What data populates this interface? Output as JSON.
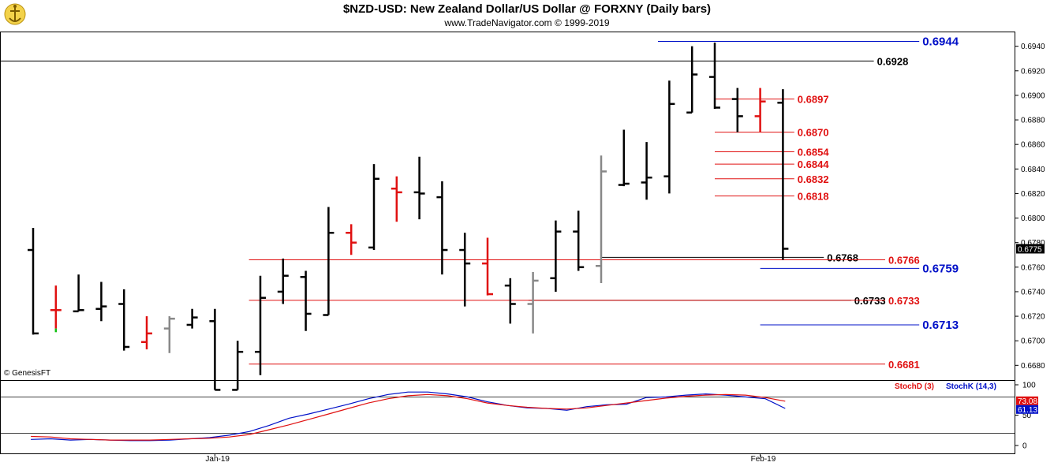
{
  "header": {
    "title": "$NZD-USD:  New Zealand Dollar/US Dollar @ FORXNY  (Daily bars)",
    "subtitle": "www.TradeNavigator.com © 1999-2019",
    "credit": "© GenesisFT"
  },
  "colors": {
    "up_down_bar": "#000000",
    "red": "#e01010",
    "blue": "#0010c8",
    "gray": "#888888",
    "green": "#10c010"
  },
  "chart_data": {
    "type": "ohlc",
    "price_axis": {
      "ylim": [
        0.6668,
        0.6952
      ],
      "ticks": [
        "0.6680",
        "0.6700",
        "0.6720",
        "0.6740",
        "0.6760",
        "0.6780",
        "0.6800",
        "0.6820",
        "0.6840",
        "0.6860",
        "0.6880",
        "0.6900",
        "0.6920",
        "0.6940"
      ],
      "tick_values": [
        0.668,
        0.67,
        0.672,
        0.674,
        0.676,
        0.678,
        0.68,
        0.682,
        0.684,
        0.686,
        0.688,
        0.69,
        0.692,
        0.694
      ],
      "last_price": "0.6775",
      "last_value": 0.6775
    },
    "x_labels": [
      {
        "label": "Jan-19",
        "index": 8
      },
      {
        "label": "Feb-19",
        "index": 32
      }
    ],
    "bars": [
      {
        "o": 0.6774,
        "h": 0.6792,
        "l": 0.6705,
        "c": 0.6706,
        "color": "black"
      },
      {
        "o": 0.6725,
        "h": 0.6745,
        "l": 0.671,
        "c": 0.6725,
        "color": "red"
      },
      {
        "o": 0.6724,
        "h": 0.6754,
        "l": 0.6724,
        "c": 0.6725,
        "color": "black"
      },
      {
        "o": 0.6726,
        "h": 0.6748,
        "l": 0.6716,
        "c": 0.6728,
        "color": "black"
      },
      {
        "o": 0.673,
        "h": 0.6742,
        "l": 0.6692,
        "c": 0.6695,
        "color": "black"
      },
      {
        "o": 0.6699,
        "h": 0.672,
        "l": 0.6693,
        "c": 0.6706,
        "color": "red"
      },
      {
        "o": 0.671,
        "h": 0.672,
        "l": 0.669,
        "c": 0.6718,
        "color": "gray"
      },
      {
        "o": 0.6713,
        "h": 0.6726,
        "l": 0.671,
        "c": 0.6719,
        "color": "black"
      },
      {
        "o": 0.6716,
        "h": 0.6726,
        "l": 0.666,
        "c": 0.666,
        "color": "black"
      },
      {
        "o": 0.666,
        "h": 0.67,
        "l": 0.666,
        "c": 0.6691,
        "color": "black"
      },
      {
        "o": 0.6691,
        "h": 0.6753,
        "l": 0.6672,
        "c": 0.6735,
        "color": "black"
      },
      {
        "o": 0.674,
        "h": 0.6767,
        "l": 0.673,
        "c": 0.6753,
        "color": "black"
      },
      {
        "o": 0.6752,
        "h": 0.6757,
        "l": 0.6708,
        "c": 0.6722,
        "color": "black"
      },
      {
        "o": 0.6721,
        "h": 0.6809,
        "l": 0.6721,
        "c": 0.6788,
        "color": "black"
      },
      {
        "o": 0.6788,
        "h": 0.6795,
        "l": 0.677,
        "c": 0.678,
        "color": "red"
      },
      {
        "o": 0.6776,
        "h": 0.6844,
        "l": 0.6774,
        "c": 0.6832,
        "color": "black"
      },
      {
        "o": 0.6824,
        "h": 0.6834,
        "l": 0.6797,
        "c": 0.6821,
        "color": "red"
      },
      {
        "o": 0.6821,
        "h": 0.685,
        "l": 0.6799,
        "c": 0.682,
        "color": "black"
      },
      {
        "o": 0.6817,
        "h": 0.683,
        "l": 0.6754,
        "c": 0.6774,
        "color": "black"
      },
      {
        "o": 0.6774,
        "h": 0.6788,
        "l": 0.6728,
        "c": 0.6763,
        "color": "black"
      },
      {
        "o": 0.6763,
        "h": 0.6784,
        "l": 0.6737,
        "c": 0.6738,
        "color": "red"
      },
      {
        "o": 0.6745,
        "h": 0.6751,
        "l": 0.6714,
        "c": 0.673,
        "color": "black"
      },
      {
        "o": 0.673,
        "h": 0.6756,
        "l": 0.6706,
        "c": 0.6749,
        "color": "gray"
      },
      {
        "o": 0.6751,
        "h": 0.6798,
        "l": 0.674,
        "c": 0.6789,
        "color": "black"
      },
      {
        "o": 0.6789,
        "h": 0.6806,
        "l": 0.6757,
        "c": 0.676,
        "color": "black"
      },
      {
        "o": 0.6761,
        "h": 0.6851,
        "l": 0.6747,
        "c": 0.6838,
        "color": "gray"
      },
      {
        "o": 0.6827,
        "h": 0.6872,
        "l": 0.6826,
        "c": 0.6828,
        "color": "black"
      },
      {
        "o": 0.6829,
        "h": 0.6862,
        "l": 0.6815,
        "c": 0.6833,
        "color": "black"
      },
      {
        "o": 0.6834,
        "h": 0.6912,
        "l": 0.682,
        "c": 0.6893,
        "color": "black"
      },
      {
        "o": 0.6886,
        "h": 0.694,
        "l": 0.6886,
        "c": 0.6917,
        "color": "black"
      },
      {
        "o": 0.6915,
        "h": 0.6943,
        "l": 0.6889,
        "c": 0.689,
        "color": "black"
      },
      {
        "o": 0.6897,
        "h": 0.6906,
        "l": 0.687,
        "c": 0.6883,
        "color": "black"
      },
      {
        "o": 0.6883,
        "h": 0.6906,
        "l": 0.687,
        "c": 0.6895,
        "color": "red"
      },
      {
        "o": 0.6894,
        "h": 0.6905,
        "l": 0.6766,
        "c": 0.6775,
        "color": "black"
      }
    ],
    "levels": [
      {
        "value": 0.6944,
        "label": "0.6944",
        "color": "blue",
        "from": 27.5,
        "to": 39.0,
        "bold": true
      },
      {
        "value": 0.6928,
        "label": "0.6928",
        "color": "black",
        "from": -1.5,
        "to": 37.0,
        "bold": false
      },
      {
        "value": 0.6897,
        "label": "0.6897",
        "color": "red",
        "from": 30.0,
        "to": 33.5,
        "bold": true
      },
      {
        "value": 0.687,
        "label": "0.6870",
        "color": "red",
        "from": 30.0,
        "to": 33.5,
        "bold": true
      },
      {
        "value": 0.6854,
        "label": "0.6854",
        "color": "red",
        "from": 30.0,
        "to": 33.5,
        "bold": true
      },
      {
        "value": 0.6844,
        "label": "0.6844",
        "color": "red",
        "from": 30.0,
        "to": 33.5,
        "bold": true
      },
      {
        "value": 0.6832,
        "label": "0.6832",
        "color": "red",
        "from": 30.0,
        "to": 33.5,
        "bold": true
      },
      {
        "value": 0.6818,
        "label": "0.6818",
        "color": "red",
        "from": 30.0,
        "to": 33.5,
        "bold": true
      },
      {
        "value": 0.6768,
        "label": "0.6768",
        "color": "black",
        "from": 25.0,
        "to": 34.8,
        "bold": false
      },
      {
        "value": 0.6766,
        "label": "0.6766",
        "color": "red",
        "from": 9.5,
        "to": 37.5,
        "bold": true
      },
      {
        "value": 0.6759,
        "label": "0.6759",
        "color": "blue",
        "from": 32.0,
        "to": 39.0,
        "bold": true
      },
      {
        "value": 0.6733,
        "label": "0.6733",
        "color": "black",
        "from": 21.8,
        "to": 36.0,
        "bold": false
      },
      {
        "value": 0.6733,
        "label": "0.6733",
        "color": "red",
        "from": 9.5,
        "to": 37.5,
        "bold": true
      },
      {
        "value": 0.6713,
        "label": "0.6713",
        "color": "blue",
        "from": 32.0,
        "to": 39.0,
        "bold": true
      },
      {
        "value": 0.6681,
        "label": "0.6681",
        "color": "red",
        "from": 9.5,
        "to": 37.5,
        "bold": true
      }
    ],
    "stochastic": {
      "ylim": [
        0,
        100
      ],
      "ticks": [
        "0",
        "50",
        "100"
      ],
      "tick_values": [
        0,
        50,
        100
      ],
      "reference_lines": [
        80,
        20
      ],
      "stochD_label": "StochD (3)",
      "stochK_label": "StochK (14,3)",
      "stochD_last": "73.08",
      "stochK_last": "61.13",
      "stochD": [
        15,
        14,
        11,
        10,
        9,
        9,
        9,
        10,
        11,
        12,
        14,
        18,
        26,
        34,
        43,
        52,
        61,
        70,
        77,
        82,
        84,
        82,
        77,
        70,
        66,
        63,
        61,
        60,
        62,
        66,
        70,
        74,
        78,
        81,
        83,
        84,
        83,
        79,
        73
      ],
      "stochK": [
        10,
        11,
        9,
        10,
        9,
        8,
        8,
        9,
        11,
        13,
        17,
        23,
        33,
        45,
        52,
        60,
        68,
        77,
        84,
        88,
        88,
        85,
        80,
        72,
        66,
        62,
        61,
        58,
        64,
        67,
        68,
        79,
        80,
        83,
        85,
        83,
        80,
        77,
        61
      ]
    }
  }
}
